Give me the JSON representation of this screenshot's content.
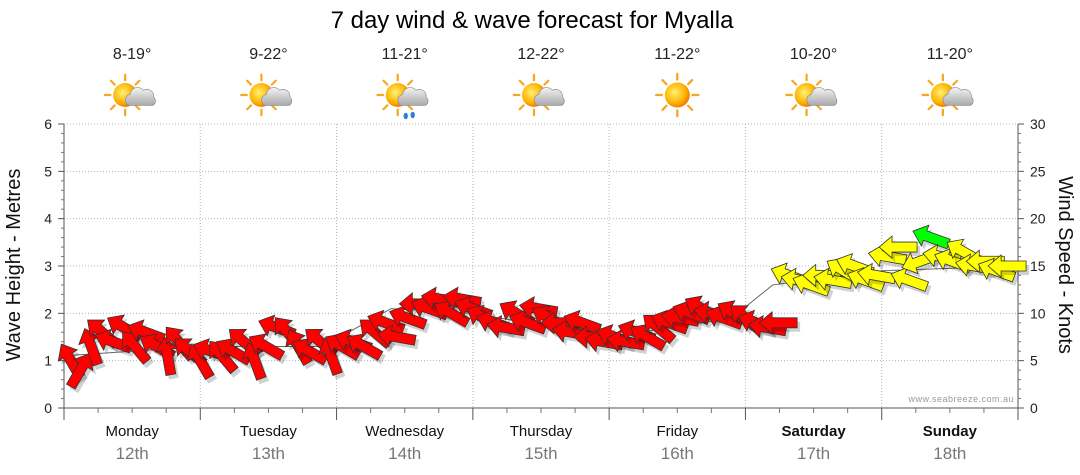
{
  "chart_data": {
    "type": "line",
    "title": "7 day wind & wave forecast for Myalla",
    "y_left_label": "Wave Height - Metres",
    "y_right_label": "Wind Speed - Knots",
    "y_left_range": [
      0,
      6
    ],
    "y_left_ticks": [
      "0",
      "1",
      "2",
      "3",
      "4",
      "5",
      "6"
    ],
    "y_right_range": [
      0,
      30
    ],
    "y_right_ticks": [
      "0",
      "5",
      "10",
      "15",
      "20",
      "25",
      "30"
    ],
    "grid": true,
    "watermark": "www.seabreeze.com.au",
    "days": [
      {
        "day": "Monday",
        "date": "12th",
        "temp": "8-19°",
        "weather_icon": "partly-cloudy-icon",
        "weekend": false
      },
      {
        "day": "Tuesday",
        "date": "13th",
        "temp": "9-22°",
        "weather_icon": "partly-cloudy-icon",
        "weekend": false
      },
      {
        "day": "Wednesday",
        "date": "14th",
        "temp": "11-21°",
        "weather_icon": "showers-icon",
        "weekend": false
      },
      {
        "day": "Thursday",
        "date": "15th",
        "temp": "12-22°",
        "weather_icon": "partly-cloudy-icon",
        "weekend": false
      },
      {
        "day": "Friday",
        "date": "16th",
        "temp": "11-22°",
        "weather_icon": "sunny-icon",
        "weekend": false
      },
      {
        "day": "Saturday",
        "date": "17th",
        "temp": "10-20°",
        "weather_icon": "partly-cloudy-icon",
        "weekend": true
      },
      {
        "day": "Sunday",
        "date": "18th",
        "temp": "11-20°",
        "weather_icon": "partly-cloudy-icon",
        "weekend": true
      }
    ],
    "series": [
      {
        "name": "Wave Height",
        "unit": "m",
        "x_day": [
          0,
          1,
          1.9,
          2.4,
          3,
          4,
          4.9,
          5.2,
          6,
          7
        ],
        "values": [
          1.1,
          1.3,
          1.3,
          2.1,
          2.0,
          1.5,
          1.9,
          2.6,
          2.9,
          3.0
        ]
      },
      {
        "name": "Wind Speed",
        "unit": "knots",
        "colors": {
          "low": "#ff0000",
          "mid": "#ffff00",
          "high": "#00ff00"
        },
        "x_day": [
          0.05,
          0.12,
          0.2,
          0.28,
          0.36,
          0.44,
          0.52,
          0.6,
          0.68,
          0.76,
          0.84,
          0.92,
          1.0,
          1.08,
          1.16,
          1.24,
          1.32,
          1.4,
          1.48,
          1.56,
          1.64,
          1.72,
          1.8,
          1.88,
          1.96,
          2.04,
          2.12,
          2.2,
          2.28,
          2.36,
          2.44,
          2.52,
          2.6,
          2.68,
          2.76,
          2.84,
          2.92,
          3.0,
          3.08,
          3.16,
          3.24,
          3.32,
          3.4,
          3.48,
          3.56,
          3.64,
          3.72,
          3.8,
          3.88,
          3.96,
          4.04,
          4.12,
          4.2,
          4.28,
          4.36,
          4.44,
          4.52,
          4.6,
          4.68,
          4.76,
          4.84,
          4.92,
          5.0,
          5.08,
          5.16,
          5.24,
          5.32,
          5.4,
          5.48,
          5.56,
          5.64,
          5.72,
          5.8,
          5.88,
          5.96,
          6.04,
          6.12,
          6.2,
          6.28,
          6.36,
          6.44,
          6.52,
          6.6,
          6.68,
          6.76,
          6.84,
          6.92
        ],
        "values": [
          5.0,
          4.0,
          6.5,
          8.0,
          7.0,
          8.5,
          6.5,
          8.0,
          6.5,
          5.5,
          7.0,
          6.0,
          5.0,
          6.0,
          5.5,
          6.0,
          7.0,
          5.0,
          6.5,
          8.5,
          8.0,
          6.5,
          6.0,
          7.0,
          5.5,
          6.5,
          7.0,
          6.5,
          8.0,
          9.0,
          7.5,
          9.5,
          11.0,
          10.5,
          11.5,
          10.0,
          11.5,
          10.5,
          9.5,
          9.0,
          8.5,
          10.0,
          9.0,
          10.5,
          9.5,
          9.0,
          8.0,
          9.0,
          7.5,
          7.0,
          7.5,
          7.0,
          8.0,
          7.5,
          8.5,
          9.0,
          9.5,
          10.0,
          10.5,
          10.0,
          9.5,
          10.0,
          9.5,
          9.0,
          8.5,
          9.0,
          14.0,
          13.5,
          13.0,
          14.0,
          13.5,
          14.5,
          15.0,
          13.5,
          14.0,
          16.0,
          17.0,
          13.5,
          15.5,
          18.0,
          16.0,
          15.5,
          16.5,
          15.0,
          15.5,
          14.5,
          15.0
        ],
        "direction_deg": [
          240,
          300,
          250,
          220,
          200,
          210,
          230,
          200,
          210,
          260,
          230,
          220,
          240,
          200,
          230,
          210,
          220,
          250,
          210,
          200,
          230,
          240,
          210,
          220,
          250,
          210,
          200,
          210,
          220,
          200,
          190,
          200,
          180,
          200,
          190,
          210,
          190,
          200,
          210,
          200,
          190,
          210,
          200,
          190,
          210,
          180,
          190,
          200,
          180,
          190,
          200,
          190,
          200,
          210,
          220,
          200,
          190,
          200,
          210,
          190,
          200,
          210,
          220,
          200,
          190,
          180,
          200,
          190,
          200,
          180,
          190,
          210,
          200,
          200,
          190,
          190,
          180,
          200,
          160,
          200,
          190,
          200,
          210,
          190,
          180,
          200,
          180
        ]
      }
    ]
  }
}
